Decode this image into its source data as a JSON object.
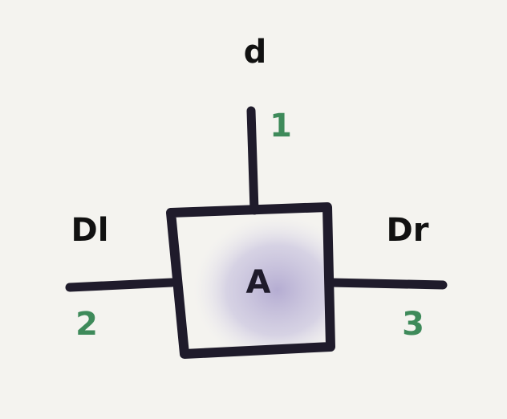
{
  "colors": {
    "background": "#f4f3ef",
    "ink": "#1f1b2b",
    "index_green": "#3e8a5a",
    "shade": "#b9b2d6"
  },
  "tensor": {
    "name": "A",
    "legs": [
      {
        "id": "top",
        "label": "d",
        "index": "1"
      },
      {
        "id": "left",
        "label": "Dl",
        "index": "2"
      },
      {
        "id": "right",
        "label": "Dr",
        "index": "3"
      }
    ]
  }
}
